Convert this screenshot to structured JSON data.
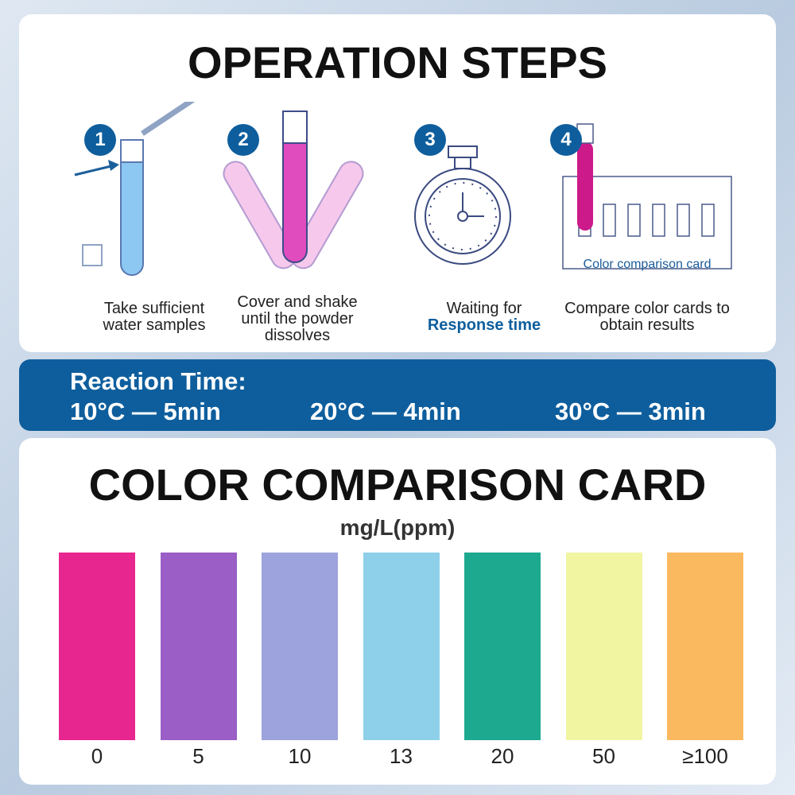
{
  "operation": {
    "title": "OPERATION STEPS",
    "steps": [
      {
        "number": "1",
        "caption": "Take sufficient water samples",
        "icon": "test-tube-dropper-icon"
      },
      {
        "number": "2",
        "caption": "Cover and shake until the powder dissolves",
        "icon": "shaking-tubes-icon"
      },
      {
        "number": "3",
        "caption": "Waiting for",
        "highlight": "Response time",
        "icon": "stopwatch-icon"
      },
      {
        "number": "4",
        "caption": "Compare color cards to obtain results",
        "icon": "color-card-icon",
        "card_label": "Color comparison card"
      }
    ]
  },
  "reaction": {
    "title": "Reaction Time:",
    "items": [
      "10°C — 5min",
      "20°C — 4min",
      "30°C — 3min"
    ]
  },
  "comparison": {
    "title": "COLOR COMPARISON CARD",
    "unit": "mg/L(ppm)",
    "swatches": [
      {
        "label": "0",
        "color": "#e8268f"
      },
      {
        "label": "5",
        "color": "#9a5ec6"
      },
      {
        "label": "10",
        "color": "#9da3dc"
      },
      {
        "label": "13",
        "color": "#8ed0ea"
      },
      {
        "label": "20",
        "color": "#1ca98f"
      },
      {
        "label": "50",
        "color": "#f1f5a2"
      },
      {
        "label": "≥100",
        "color": "#fbb95f"
      }
    ]
  }
}
